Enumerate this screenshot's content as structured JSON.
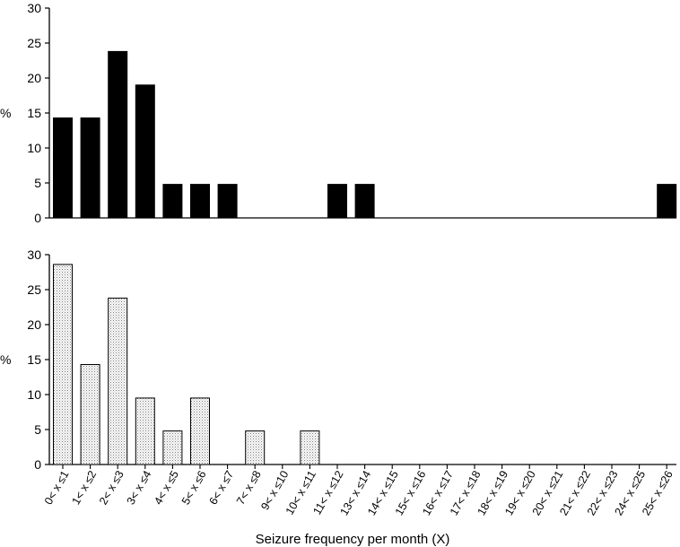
{
  "chart_data": {
    "type": "bar",
    "xlabel": "Seizure frequency per month (X)",
    "categories": [
      "0< x ≤1",
      "1< x ≤2",
      "2< x ≤3",
      "3< x ≤4",
      "4< x ≤5",
      "5< x ≤6",
      "6< x ≤7",
      "7< x ≤8",
      "9< x ≤10",
      "10< x ≤11",
      "11< x ≤12",
      "13< x ≤14",
      "14< x ≤15",
      "15< x ≤16",
      "16< x ≤17",
      "17< x ≤18",
      "18< x ≤19",
      "19< x ≤20",
      "20< x ≤21",
      "21< x ≤22",
      "22< x ≤23",
      "24< x ≤25",
      "25< x ≤26"
    ],
    "panels": [
      {
        "ylabel": "%",
        "ylim": [
          0,
          30
        ],
        "yticks": [
          0,
          5,
          10,
          15,
          20,
          25,
          30
        ],
        "fill": "#000000",
        "pattern": "solid",
        "values": [
          14.3,
          14.3,
          23.8,
          19.0,
          4.8,
          4.8,
          4.8,
          0,
          0,
          0,
          4.8,
          4.8,
          0,
          0,
          0,
          0,
          0,
          0,
          0,
          0,
          0,
          0,
          4.8
        ]
      },
      {
        "ylabel": "%",
        "ylim": [
          0,
          30
        ],
        "yticks": [
          0,
          5,
          10,
          15,
          20,
          25,
          30
        ],
        "fill": "#ffffff",
        "pattern": "stippled",
        "values": [
          28.6,
          14.3,
          23.8,
          9.5,
          4.8,
          9.5,
          0,
          4.8,
          0,
          4.8,
          0,
          0,
          0,
          0,
          0,
          0,
          0,
          0,
          0,
          0,
          0,
          0,
          0
        ]
      }
    ]
  }
}
